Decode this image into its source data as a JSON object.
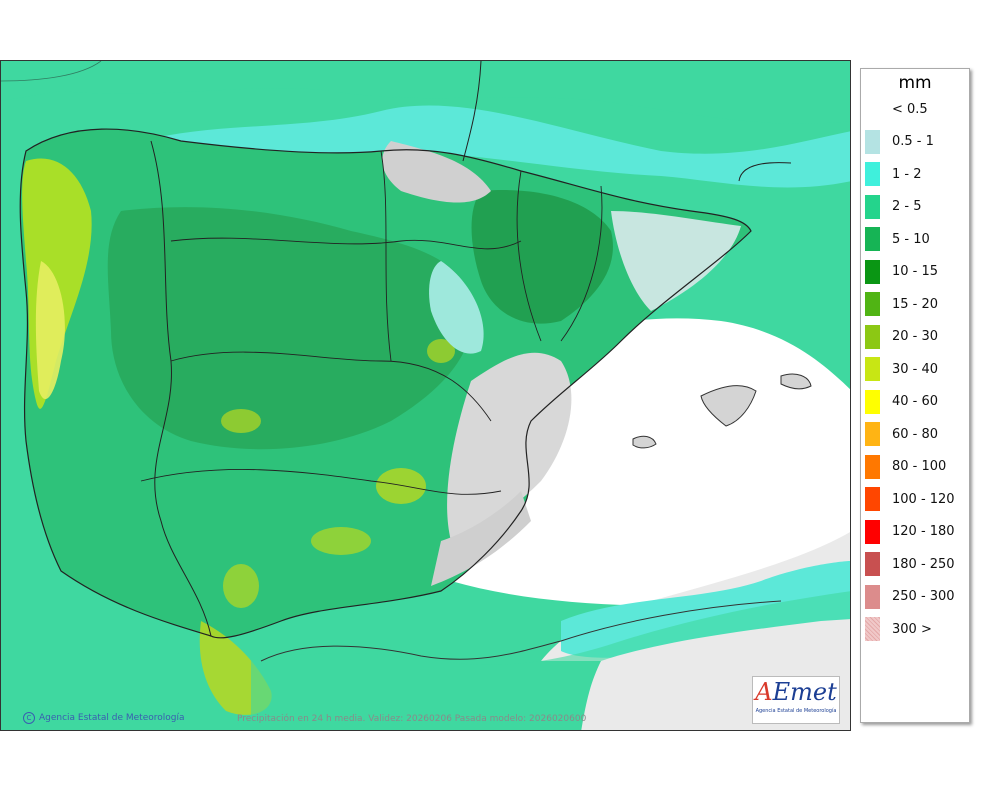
{
  "map": {
    "credit": "Agencia Estatal de Meteorología",
    "caption": "Precipitación en 24 h media. Validez: 20260206 Pasada modelo: 2026020600",
    "logo_text": "AEmet",
    "logo_sub": "Agencia Estatal de Meteorología"
  },
  "legend": {
    "unit": "mm",
    "items": [
      {
        "label": "< 0.5",
        "color": "#ffffff"
      },
      {
        "label": "0.5 - 1",
        "color": "#b4e3e3"
      },
      {
        "label": "1 - 2",
        "color": "#3ff0dc"
      },
      {
        "label": "2 - 5",
        "color": "#24d48c"
      },
      {
        "label": "5 - 10",
        "color": "#16b455"
      },
      {
        "label": "10 - 15",
        "color": "#0a9614"
      },
      {
        "label": "15 - 20",
        "color": "#50b414"
      },
      {
        "label": "20 - 30",
        "color": "#8cc814"
      },
      {
        "label": "30 - 40",
        "color": "#c8e614"
      },
      {
        "label": "40 - 60",
        "color": "#ffff00"
      },
      {
        "label": "60 - 80",
        "color": "#ffb414"
      },
      {
        "label": "80 - 100",
        "color": "#ff7800"
      },
      {
        "label": "100 - 120",
        "color": "#ff4600"
      },
      {
        "label": "120 - 180",
        "color": "#ff0000"
      },
      {
        "label": "180 - 250",
        "color": "#c85050"
      },
      {
        "label": "250 - 300",
        "color": "#dc8c8c"
      },
      {
        "label": "300 >",
        "color": "#f0c8c8"
      }
    ]
  }
}
